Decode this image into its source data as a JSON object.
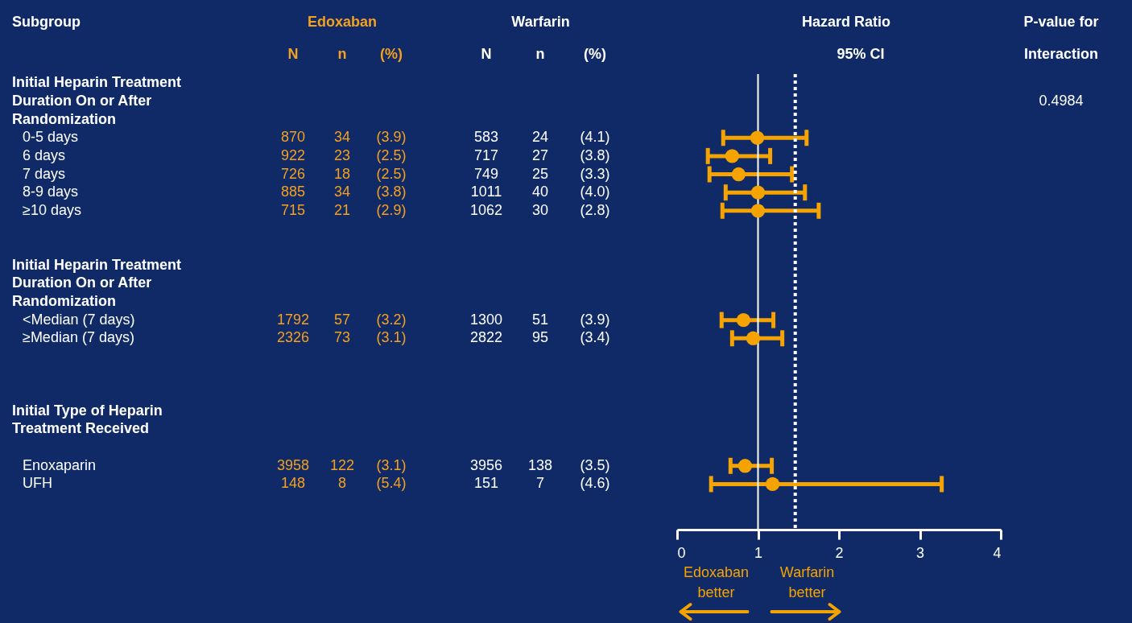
{
  "chart_data": [
    {
      "type": "other",
      "ylabel": "Subgroup",
      "annotations": [
        "Edoxaban",
        "Warfarin"
      ],
      "categories": [
        "N",
        "n",
        "(%)",
        "N",
        "n",
        "(%)"
      ],
      "colors": [
        "#f5a01e",
        "#f5a01e",
        "#f5a01e",
        "#ffffff",
        "#ffffff",
        "#ffffff"
      ],
      "y_categories": [
        "Initial Heparin Treatment",
        "Duration On or After",
        "Randomization",
        "0-5 days",
        "6 days",
        "7 days",
        "8-9 days",
        "≥10 days",
        null,
        null,
        "Initial Heparin Treatment",
        "Duration On or After",
        "Randomization",
        "<Median (7 days)",
        "≥Median (7 days)",
        null,
        null,
        null,
        "Initial Type of Heparin",
        "Treatment Received",
        null,
        "Enoxaparin",
        "UFH",
        null,
        null
      ],
      "cell_labels": [
        [
          null,
          null,
          null,
          null,
          null,
          null
        ],
        [
          null,
          null,
          null,
          null,
          null,
          null
        ],
        [
          null,
          null,
          null,
          null,
          null,
          null
        ],
        [
          "870",
          "34",
          "(3.9)",
          "583",
          "24",
          "(4.1)"
        ],
        [
          "922",
          "23",
          "(2.5)",
          "717",
          "27",
          "(3.8)"
        ],
        [
          "726",
          "18",
          "(2.5)",
          "749",
          "25",
          "(3.3)"
        ],
        [
          "885",
          "34",
          "(3.8)",
          "1011",
          "40",
          "(4.0)"
        ],
        [
          "715",
          "21",
          "(2.9)",
          "1062",
          "30",
          "(2.8)"
        ],
        [
          null,
          null,
          null,
          null,
          null,
          null
        ],
        [
          null,
          null,
          null,
          null,
          null,
          null
        ],
        [
          null,
          null,
          null,
          null,
          null,
          null
        ],
        [
          null,
          null,
          null,
          null,
          null,
          null
        ],
        [
          null,
          null,
          null,
          null,
          null,
          null
        ],
        [
          "1792",
          "57",
          "(3.2)",
          "1300",
          "51",
          "(3.9)"
        ],
        [
          "2326",
          "73",
          "(3.1)",
          "2822",
          "95",
          "(3.4)"
        ],
        [
          null,
          null,
          null,
          null,
          null,
          null
        ],
        [
          null,
          null,
          null,
          null,
          null,
          null
        ],
        [
          null,
          null,
          null,
          null,
          null,
          null
        ],
        [
          null,
          null,
          null,
          null,
          null,
          null
        ],
        [
          null,
          null,
          null,
          null,
          null,
          null
        ],
        [
          null,
          null,
          null,
          null,
          null,
          null
        ],
        [
          "3958",
          "122",
          "(3.1)",
          "3956",
          "138",
          "(3.5)"
        ],
        [
          "148",
          "8",
          "(5.4)",
          "151",
          "7",
          "(4.6)"
        ],
        [
          null,
          null,
          null,
          null,
          null,
          null
        ],
        [
          null,
          null,
          null,
          null,
          null,
          null
        ]
      ]
    },
    {
      "type": "scatter",
      "orientation": "horizontal",
      "title": "Hazard Ratio",
      "subtitle": "95% CI",
      "y2label": "P-value for Interaction",
      "categories": [
        null,
        null,
        null,
        null,
        null,
        null,
        null,
        null,
        null,
        null,
        null,
        null,
        null,
        null,
        null,
        null,
        null,
        null,
        null,
        null,
        null,
        null,
        null,
        null,
        null
      ],
      "values": [
        null,
        null,
        null,
        0.99,
        0.68,
        0.76,
        1.0,
        1.0,
        null,
        null,
        null,
        null,
        null,
        0.82,
        0.94,
        null,
        null,
        null,
        null,
        null,
        null,
        0.84,
        1.18,
        null,
        null
      ],
      "errors": [
        null,
        null,
        null,
        [
          0.57,
          1.6
        ],
        [
          0.38,
          1.15
        ],
        [
          0.4,
          1.42
        ],
        [
          0.6,
          1.58
        ],
        [
          0.56,
          1.75
        ],
        null,
        null,
        null,
        null,
        null,
        [
          0.55,
          1.19
        ],
        [
          0.68,
          1.3
        ],
        null,
        null,
        null,
        null,
        null,
        null,
        [
          0.66,
          1.17
        ],
        [
          0.42,
          3.27
        ],
        null,
        null
      ],
      "color": "#f5a300",
      "marker": "circle",
      "xlim": [
        0,
        4
      ],
      "xticks": [
        0,
        1,
        2,
        3,
        4
      ],
      "ref_lines": [
        {
          "axis": "x",
          "value": 1,
          "color": "#ffffff",
          "line_style": "solid"
        },
        {
          "axis": "x",
          "value": 1.46,
          "color": "#ffffff",
          "line_style": "dotted"
        }
      ],
      "annotations": [
        "Edoxaban better",
        "Warfarin better",
        "0.4984"
      ]
    }
  ]
}
